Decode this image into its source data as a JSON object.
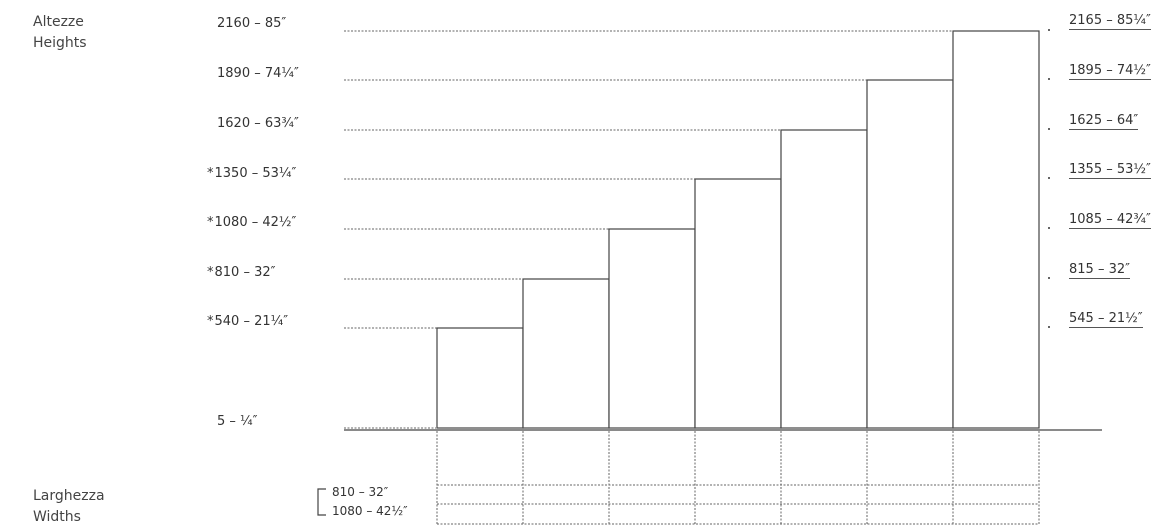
{
  "heights_header": {
    "it": "Altezze",
    "en": "Heights"
  },
  "widths_header": {
    "it": "Larghezza",
    "en": "Widths"
  },
  "left_labels": [
    {
      "text": "2160 – 85″",
      "star": ""
    },
    {
      "text": "1890 – 74¼″",
      "star": ""
    },
    {
      "text": "1620 – 63¾″",
      "star": ""
    },
    {
      "text": "1350 – 53¼″",
      "star": "*"
    },
    {
      "text": "1080 – 42½″",
      "star": "*"
    },
    {
      "text": "810 – 32″",
      "star": "*"
    },
    {
      "text": "540 – 21¼″",
      "star": "*"
    }
  ],
  "base_label": "5 – ¼″",
  "right_labels": [
    "2165 – 85¼″",
    "1895 – 74½″",
    "1625 – 64″",
    "1355 – 53½″",
    "1085 – 42¾″",
    "815 – 32″",
    "545 – 21½″"
  ],
  "width_options": [
    "810 – 32″",
    "1080 – 42½″"
  ]
}
